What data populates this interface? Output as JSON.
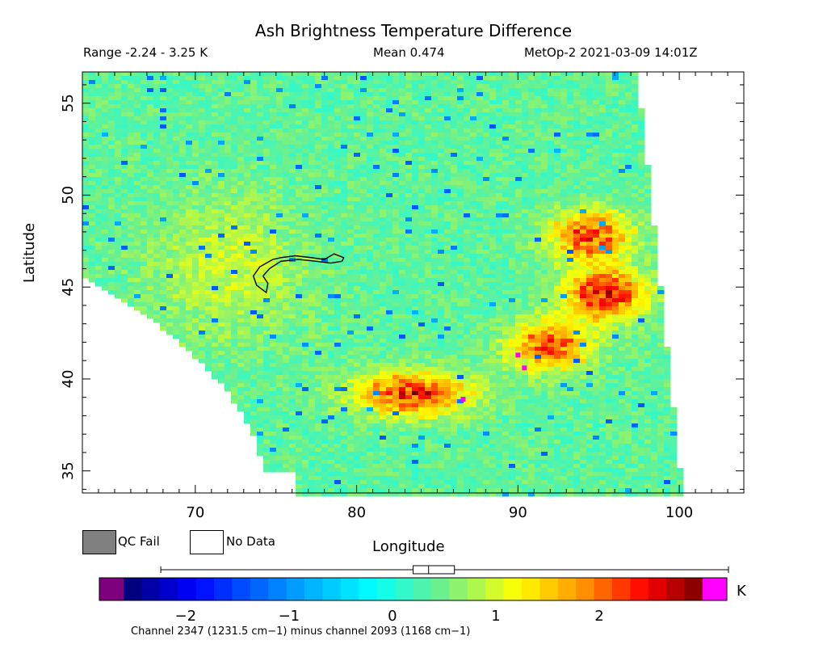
{
  "chart_data": {
    "type": "heatmap",
    "title": "Ash Brightness Temperature Difference",
    "subtitle": {
      "range": "Range -2.24 - 3.25 K",
      "mean": "Mean 0.474",
      "satellite_time": "MetOp-2 2021-03-09 14:01Z"
    },
    "xlabel": "Longitude",
    "ylabel": "Latitude",
    "xlim": [
      63,
      104
    ],
    "ylim": [
      33.8,
      56.7
    ],
    "x_ticks": [
      70,
      80,
      90,
      100
    ],
    "y_ticks": [
      35,
      40,
      45,
      50,
      55
    ],
    "value_range": [
      -2.24,
      3.25
    ],
    "mean": 0.474,
    "colorbar": {
      "min": -2.6,
      "max": 3.0,
      "ticks": [
        -2,
        -1,
        0,
        1,
        2
      ],
      "tick_labels": [
        "−2",
        "−1",
        "0",
        "1",
        "2"
      ],
      "unit": "K",
      "label": "Channel 2347 (1231.5 cm−1) minus channel 2093 (1168 cm−1)",
      "boxplot": {
        "min": -2.24,
        "q1": 0.2,
        "median": 0.35,
        "q3": 0.6,
        "max": 3.25
      }
    },
    "legend": [
      {
        "label": "QC Fail",
        "color": "#808080"
      },
      {
        "label": "No Data",
        "color": "#ffffff"
      }
    ],
    "hotspots": [
      {
        "name": "southern plume",
        "lon": 83.5,
        "lat": 39.2,
        "peak": 2.4
      },
      {
        "name": "central patch",
        "lon": 92.0,
        "lat": 41.8,
        "peak": 2.2
      },
      {
        "name": "northeast patch",
        "lon": 95.5,
        "lat": 44.6,
        "peak": 2.5
      },
      {
        "name": "north patch",
        "lon": 94.5,
        "lat": 47.8,
        "peak": 2.2
      }
    ],
    "warm_region": {
      "name": "western yellow band",
      "lon": 72,
      "lat": 46,
      "value": 0.9
    },
    "contour": {
      "name": "ash outline",
      "lon_range": [
        73.5,
        79.2
      ],
      "lat_range": [
        44.7,
        46.8
      ]
    }
  }
}
